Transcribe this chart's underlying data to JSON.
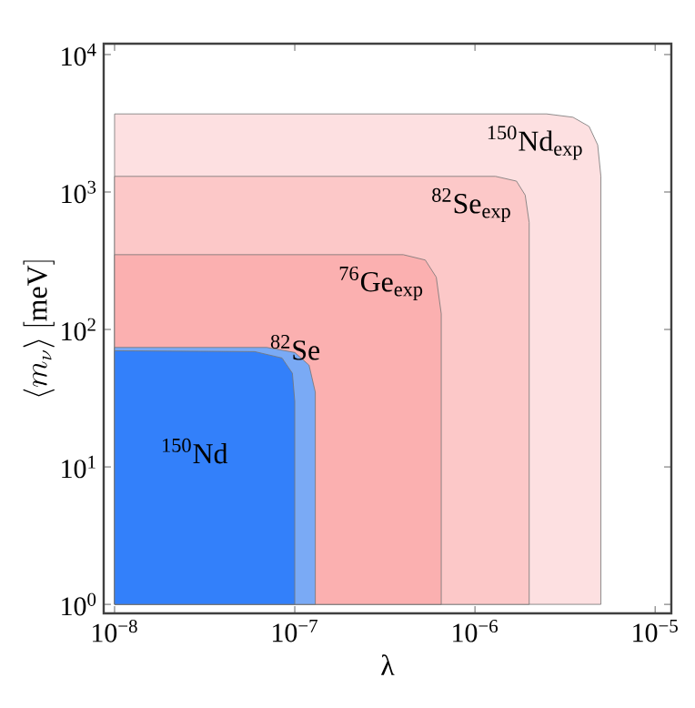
{
  "chart_data": {
    "type": "area",
    "log": "xy",
    "grid": false,
    "xlabel": "λ",
    "ylabel": "\\langle m_{\\nu} \\rangle\\ [\\mathrm{meV}]",
    "xlim": [
      8.7e-09,
      1.23e-05
    ],
    "ylim": [
      0.86,
      12000
    ],
    "xticks": [
      {
        "value": 1e-08,
        "label": "10$^{−8}$"
      },
      {
        "value": 1e-07,
        "label": "10$^{−7}$"
      },
      {
        "value": 1e-06,
        "label": "10$^{−6}$"
      },
      {
        "value": 1e-05,
        "label": "10$^{−5}$"
      }
    ],
    "yticks": [
      {
        "value": 1,
        "label": "10$^{0}$"
      },
      {
        "value": 10,
        "label": "10$^{1}$"
      },
      {
        "value": 100,
        "label": "10$^{2}$"
      },
      {
        "value": 1000,
        "label": "10$^{3}$"
      },
      {
        "value": 10000,
        "label": "10$^{4}$"
      }
    ],
    "series": [
      {
        "name": "$^{150}$Nd$_{exp}$",
        "color": "#fde0e1",
        "x": [
          1e-08,
          2.5e-06,
          3.5e-06,
          4.3e-06,
          4.8e-06,
          5e-06,
          5e-06
        ],
        "values": [
          3700,
          3700,
          3500,
          3000,
          2200,
          1300,
          1
        ]
      },
      {
        "name": "$^{82}$Se$_{exp}$",
        "color": "#fcc8c8",
        "x": [
          1e-08,
          1.3e-06,
          1.7e-06,
          1.9e-06,
          2e-06,
          2e-06
        ],
        "values": [
          1300,
          1300,
          1200,
          950,
          600,
          1
        ]
      },
      {
        "name": "$^{76}$Ge$_{exp}$",
        "color": "#fbb0b0",
        "x": [
          1e-08,
          4e-07,
          5.3e-07,
          6.1e-07,
          6.5e-07,
          6.5e-07
        ],
        "values": [
          350,
          350,
          320,
          240,
          130,
          1
        ]
      },
      {
        "name": "$^{82}$Se",
        "color": "#7aaaf5",
        "x": [
          1e-08,
          7e-08,
          1e-07,
          1.2e-07,
          1.3e-07,
          1.3e-07
        ],
        "values": [
          74,
          74,
          68,
          55,
          35,
          1
        ]
      },
      {
        "name": "$^{150}$Nd",
        "color": "#3380fa",
        "x": [
          1e-08,
          6e-08,
          8.5e-08,
          9.7e-08,
          1e-07,
          1e-07
        ],
        "values": [
          70,
          69,
          62,
          48,
          30,
          1
        ]
      }
    ]
  }
}
